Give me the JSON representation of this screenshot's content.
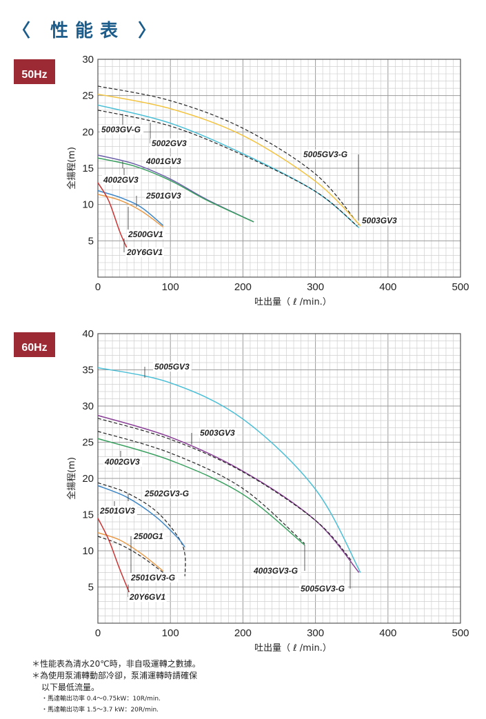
{
  "page": {
    "title": "〈 性能表 〉"
  },
  "colors": {
    "badge": "#9b2a34",
    "title": "#1b5c8a"
  },
  "notes": [
    "＊性能表為清水20℃時，非自吸運轉之數據。",
    "＊為使用泵浦轉動部冷卻，泵浦運轉時請確保",
    "以下最低流量。",
    "・馬達輸出功率 0.4～0.75kW：10R/min.",
    "・馬達輸出功率 1.5～3.7 kW：20R/min."
  ],
  "chart_data": [
    {
      "type": "line",
      "badge": "50Hz",
      "xlabel": "吐出量（ ℓ /min.）",
      "ylabel": "全揚程(m)",
      "xlim": [
        0,
        500
      ],
      "ylim": [
        0,
        30
      ],
      "xticks": [
        0,
        100,
        200,
        300,
        400,
        500
      ],
      "yticks": [
        5,
        10,
        15,
        20,
        25,
        30
      ],
      "grid": true,
      "series": [
        {
          "name": "5005GV3-G",
          "color": "#222222",
          "dash": true,
          "x": [
            0,
            100,
            200,
            300,
            360
          ],
          "y": [
            26.3,
            24.3,
            20.5,
            14.2,
            7.2
          ]
        },
        {
          "name": "5003GV3",
          "color": "#f2c441",
          "dash": false,
          "x": [
            0,
            100,
            200,
            300,
            362
          ],
          "y": [
            25.2,
            23.2,
            19.5,
            13.2,
            7.1
          ]
        },
        {
          "name": "5002GV3",
          "color": "#4bbfd6",
          "dash": false,
          "x": [
            0,
            100,
            200,
            300,
            360
          ],
          "y": [
            23.7,
            21.2,
            17.0,
            11.8,
            6.8
          ]
        },
        {
          "name": "5003GV-G",
          "color": "#222222",
          "dash": true,
          "x": [
            0,
            100,
            200,
            300,
            358
          ],
          "y": [
            23.0,
            20.8,
            16.8,
            11.8,
            7.0
          ]
        },
        {
          "name": "4001GV3",
          "color": "#6a5fa8",
          "dash": false,
          "x": [
            0,
            50,
            100,
            150,
            215
          ],
          "y": [
            16.8,
            15.6,
            13.5,
            10.7,
            7.6
          ]
        },
        {
          "name": "4002GV3",
          "color": "#3aa060",
          "dash": false,
          "x": [
            0,
            50,
            100,
            150,
            215
          ],
          "y": [
            16.4,
            15.3,
            13.3,
            10.6,
            7.6
          ]
        },
        {
          "name": "2501GV3",
          "color": "#3d86c6",
          "dash": false,
          "x": [
            0,
            30,
            60,
            90
          ],
          "y": [
            11.9,
            11.0,
            9.6,
            7.1
          ]
        },
        {
          "name": "2500GV1",
          "color": "#e89a47",
          "dash": false,
          "x": [
            0,
            30,
            60,
            90
          ],
          "y": [
            11.4,
            10.6,
            9.1,
            6.9
          ]
        },
        {
          "name": "20Y6GV1",
          "color": "#cc3333",
          "dash": false,
          "x": [
            0,
            15,
            30,
            40
          ],
          "y": [
            13.0,
            10.5,
            6.3,
            4.0
          ]
        }
      ],
      "annotations": [
        "5005GV3-G",
        "5003GV3",
        "5002GV3",
        "5003GV-G",
        "4001GV3",
        "4002GV3",
        "2501GV3",
        "2500GV1",
        "20Y6GV1"
      ]
    },
    {
      "type": "line",
      "badge": "60Hz",
      "xlabel": "吐出量（ ℓ /min.）",
      "ylabel": "全揚程(m)",
      "xlim": [
        0,
        500
      ],
      "ylim": [
        0,
        40
      ],
      "xticks": [
        0,
        100,
        200,
        300,
        400,
        500
      ],
      "yticks": [
        5,
        10,
        15,
        20,
        25,
        30,
        35,
        40
      ],
      "grid": true,
      "series": [
        {
          "name": "5005GV3",
          "color": "#4bbfd6",
          "dash": false,
          "x": [
            0,
            100,
            200,
            300,
            362
          ],
          "y": [
            35.3,
            33.2,
            28.2,
            18.5,
            7.0
          ]
        },
        {
          "name": "5003GV3",
          "color": "#8a3f97",
          "dash": false,
          "x": [
            0,
            100,
            200,
            300,
            360
          ],
          "y": [
            28.7,
            25.7,
            21.0,
            14.2,
            7.0
          ]
        },
        {
          "name": "5005GV3-G",
          "color": "#222222",
          "dash": true,
          "x": [
            0,
            100,
            200,
            300,
            350
          ],
          "y": [
            28.3,
            25.4,
            20.9,
            14.2,
            8.6
          ]
        },
        {
          "name": "4003GV3-G",
          "color": "#222222",
          "dash": true,
          "x": [
            0,
            100,
            200,
            285
          ],
          "y": [
            26.5,
            23.5,
            18.6,
            11.0
          ]
        },
        {
          "name": "4002GV3",
          "color": "#3aa060",
          "dash": false,
          "x": [
            0,
            100,
            200,
            285
          ],
          "y": [
            25.5,
            22.5,
            17.8,
            10.8
          ]
        },
        {
          "name": "2502GV3-G",
          "color": "#222222",
          "dash": true,
          "x": [
            0,
            40,
            80,
            110,
            120,
            120
          ],
          "y": [
            19.4,
            18.0,
            15.5,
            12.0,
            9.5,
            6.5
          ]
        },
        {
          "name": "2501GV3",
          "color": "#3d86c6",
          "dash": false,
          "x": [
            0,
            40,
            80,
            110,
            120
          ],
          "y": [
            19.0,
            17.4,
            14.7,
            11.8,
            10.5
          ]
        },
        {
          "name": "2500G1",
          "color": "#e89a47",
          "dash": false,
          "x": [
            0,
            30,
            60,
            90
          ],
          "y": [
            12.5,
            11.5,
            9.6,
            7.2
          ]
        },
        {
          "name": "2501GV3-G",
          "color": "#222222",
          "dash": true,
          "x": [
            0,
            30,
            60,
            90
          ],
          "y": [
            12.0,
            10.9,
            9.2,
            7.0
          ]
        },
        {
          "name": "20Y6GV1",
          "color": "#cc3333",
          "dash": false,
          "x": [
            0,
            15,
            30,
            45
          ],
          "y": [
            14.5,
            11.5,
            7.5,
            3.8
          ]
        }
      ],
      "annotations": [
        "5005GV3",
        "5003GV3",
        "4002GV3",
        "2502GV3-G",
        "2501GV3",
        "2500G1",
        "2501GV3-G",
        "20Y6GV1",
        "4003GV3-G",
        "5005GV3-G"
      ]
    }
  ]
}
